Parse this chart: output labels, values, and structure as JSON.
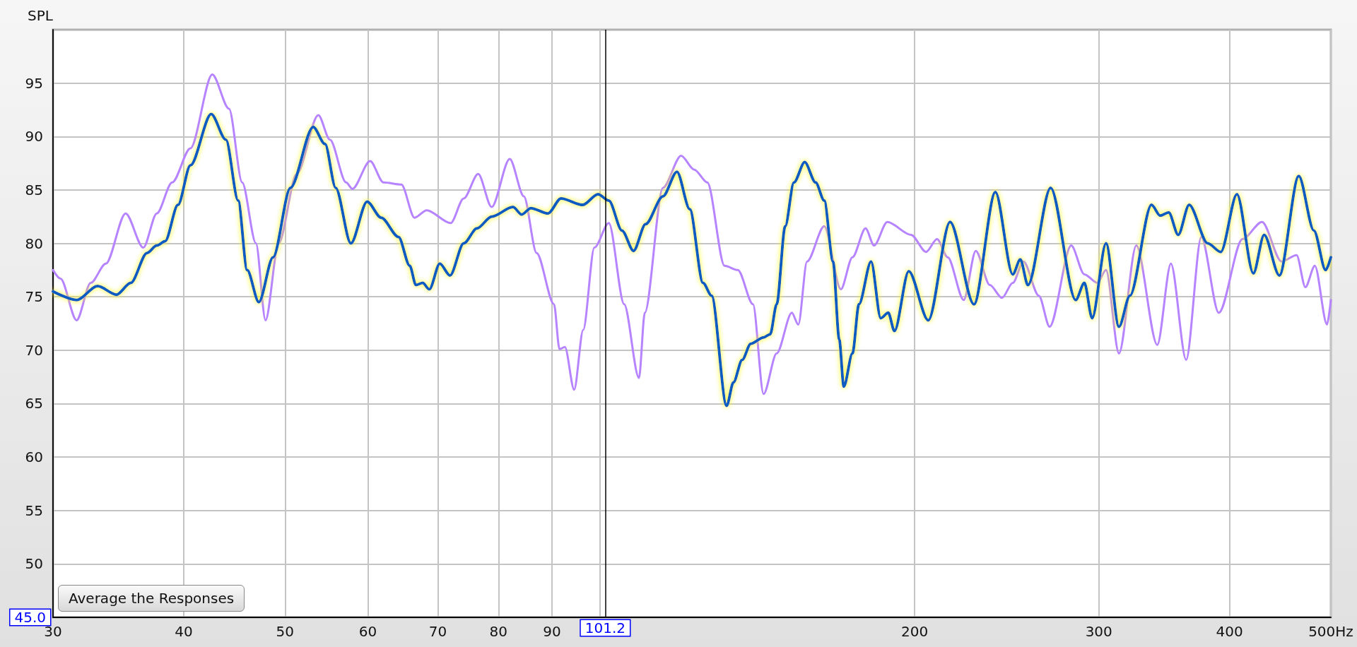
{
  "chart_data": {
    "type": "line",
    "ylabel": "SPL",
    "log": "x",
    "grid": true,
    "marker": "none",
    "line_style": "solid",
    "xlim": [
      30,
      500
    ],
    "ylim": [
      45,
      100
    ],
    "xticks": [
      30,
      40,
      50,
      60,
      70,
      80,
      90,
      {
        "value": 100,
        "label": null
      },
      200,
      300,
      400,
      {
        "value": 500,
        "label": "500Hz"
      }
    ],
    "yticks": [
      {
        "value": 45,
        "label": null
      },
      50,
      55,
      60,
      65,
      70,
      75,
      80,
      85,
      90,
      95
    ],
    "ref_lines": [
      {
        "axis": "x",
        "value": 101.2,
        "label": "101.2",
        "color": "#000000"
      },
      {
        "axis": "y",
        "value": 45.0,
        "label": "45.0",
        "color": "#000000"
      }
    ],
    "annotations": [
      "Average the Responses"
    ],
    "series": [
      {
        "color": "#b784ff",
        "x": [
          30,
          30.5,
          31.6,
          32.6,
          33.7,
          35.2,
          36.6,
          37.7,
          39.0,
          40.6,
          42.6,
          44.2,
          45.5,
          46.9,
          47.9,
          49.3,
          51.3,
          53.8,
          55.2,
          57.2,
          58.0,
          60.3,
          62.1,
          64.6,
          66.5,
          68.3,
          72.0,
          74.1,
          76.5,
          78.8,
          82.0,
          84.6,
          87.0,
          90.4,
          91.5,
          92.6,
          94.5,
          96.4,
          98.8,
          102,
          105.5,
          109,
          110.4,
          114.9,
          119.6,
          123.1,
          126.7,
          131.6,
          135.5,
          140.1,
          143.4,
          147.6,
          152.6,
          154.8,
          157.8,
          163.9,
          170,
          174.4,
          179.5,
          182.9,
          188.3,
          198.4,
          205.1,
          210.1,
          215.1,
          222.8,
          228.8,
          236,
          242.4,
          248.2,
          254.1,
          262.9,
          269.2,
          282.3,
          290.6,
          299,
          304.8,
          313.6,
          325.8,
          341.2,
          351.6,
          363.6,
          375.9,
          390.7,
          411.6,
          429.7,
          448.5,
          463.7,
          472.7,
          482.7,
          495.8,
          500
        ],
        "values": [
          77.5,
          76.7,
          72.8,
          76.3,
          78.1,
          82.8,
          79.6,
          82.8,
          85.7,
          88.9,
          95.8,
          92.6,
          85.7,
          80.0,
          72.8,
          80.0,
          86.5,
          92.0,
          89.7,
          85.7,
          85.1,
          87.7,
          85.7,
          85.5,
          82.4,
          83.1,
          81.9,
          84.2,
          86.5,
          83.4,
          87.9,
          84.4,
          79.1,
          74.3,
          70.1,
          70.3,
          66.3,
          71.9,
          79.6,
          81.9,
          74.3,
          67.4,
          73.5,
          85.2,
          88.2,
          86.9,
          85.7,
          77.9,
          77.5,
          74.3,
          65.9,
          69.7,
          73.5,
          72.4,
          78.3,
          81.6,
          75.7,
          78.7,
          81.4,
          79.8,
          82.0,
          80.8,
          79.2,
          80.4,
          78.7,
          74.7,
          79.3,
          76.1,
          74.9,
          76.3,
          78.3,
          75.1,
          72.2,
          79.8,
          77.1,
          76.3,
          77.5,
          69.7,
          79.8,
          70.5,
          78.1,
          69.1,
          80.6,
          73.5,
          80.4,
          82.0,
          78.3,
          78.9,
          75.9,
          77.9,
          72.4,
          74.7
        ]
      },
      {
        "color": "#0b5cc0",
        "x": [
          30,
          31.6,
          33.1,
          34.5,
          35.6,
          36.9,
          37.7,
          38.4,
          39.5,
          40.6,
          42.5,
          43.9,
          45.1,
          46.0,
          47.2,
          48.7,
          50.6,
          53.2,
          54.6,
          55.9,
          57.8,
          59.9,
          61.8,
          64.2,
          65.8,
          66.7,
          67.7,
          68.7,
          70.3,
          71.9,
          74.1,
          76.3,
          78.8,
          82.6,
          84.2,
          85.9,
          89.2,
          91.8,
          96.3,
          99.6,
          102,
          105,
          107.7,
          110.6,
          114.9,
          118.5,
          121.9,
          125.5,
          127.9,
          132.2,
          134.2,
          136.8,
          139.4,
          143.4,
          145.5,
          147.6,
          150.4,
          153.3,
          157,
          160.8,
          163.9,
          167.1,
          169.4,
          171.1,
          174.4,
          176.9,
          181.7,
          185.6,
          188.7,
          191.3,
          197.4,
          206.1,
          216.2,
          227.9,
          238.9,
          248.2,
          252.4,
          256.6,
          269.8,
          285.1,
          290.6,
          295.6,
          304.8,
          313.6,
          321.2,
          336.9,
          343.4,
          349.9,
          357.3,
          366,
          381.3,
          392.4,
          406.6,
          421.6,
          431.7,
          446.4,
          465.9,
          481.7,
          494.3,
          500
        ],
        "values": [
          75.5,
          74.7,
          76.0,
          75.2,
          76.3,
          79.1,
          79.8,
          80.2,
          83.6,
          87.3,
          92.1,
          89.7,
          84.0,
          77.5,
          74.5,
          78.7,
          85.2,
          90.9,
          89.3,
          85.2,
          80.0,
          83.9,
          82.4,
          80.6,
          77.9,
          76.1,
          76.3,
          75.7,
          78.1,
          77.0,
          80.0,
          81.4,
          82.5,
          83.4,
          82.7,
          83.3,
          82.8,
          84.2,
          83.6,
          84.6,
          84.0,
          81.2,
          79.3,
          81.8,
          84.4,
          86.7,
          83.2,
          76.3,
          75.1,
          64.8,
          67.0,
          69.1,
          70.6,
          71.2,
          71.5,
          74.3,
          81.6,
          85.7,
          87.6,
          85.7,
          84.0,
          78.3,
          71.0,
          66.6,
          69.7,
          74.3,
          78.3,
          73.0,
          73.5,
          71.8,
          77.4,
          72.8,
          82.0,
          74.3,
          84.8,
          77.1,
          78.5,
          76.1,
          85.2,
          74.7,
          76.3,
          73.0,
          80.0,
          72.2,
          75.1,
          83.6,
          82.6,
          82.9,
          80.8,
          83.6,
          80.0,
          79.2,
          84.6,
          77.2,
          80.8,
          77.0,
          86.3,
          81.2,
          77.5,
          78.7
        ]
      }
    ]
  }
}
